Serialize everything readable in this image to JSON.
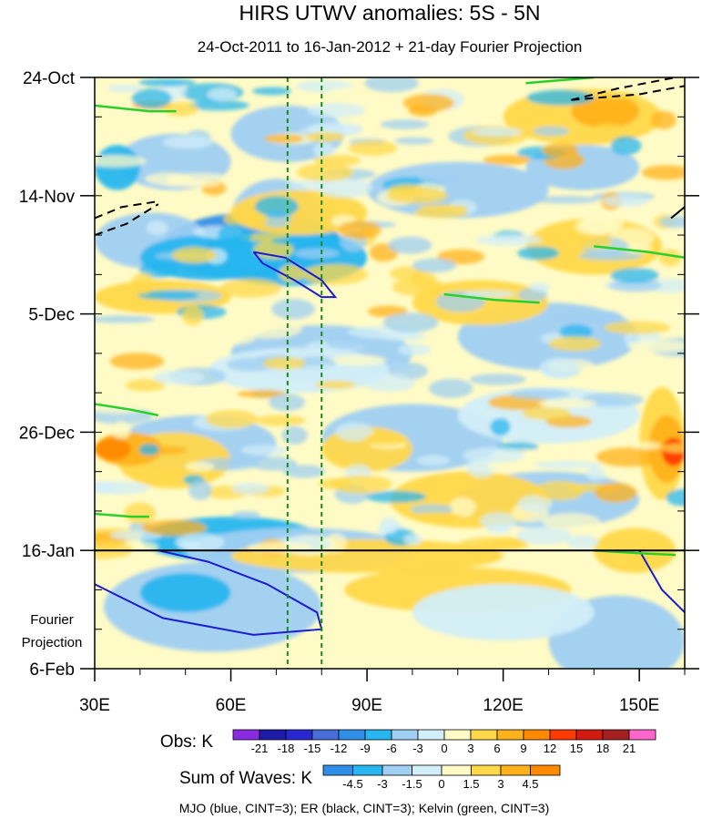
{
  "chart_data": {
    "type": "heatmap",
    "title": "HIRS UTWV anomalies: 5S - 5N",
    "subtitle": "24-Oct-2011 to 16-Jan-2012 + 21-day Fourier Projection",
    "x_axis": {
      "ticks": [
        {
          "value": 30,
          "label": "30E"
        },
        {
          "value": 60,
          "label": "60E"
        },
        {
          "value": 90,
          "label": "90E"
        },
        {
          "value": 120,
          "label": "120E"
        },
        {
          "value": 150,
          "label": "150E"
        }
      ],
      "range": [
        30,
        160
      ],
      "minor_step": 10
    },
    "y_axis": {
      "range_days": [
        0,
        105
      ],
      "reversed": true,
      "ticks": [
        {
          "day": 0,
          "label": "24-Oct"
        },
        {
          "day": 21,
          "label": "14-Nov"
        },
        {
          "day": 42,
          "label": "5-Dec"
        },
        {
          "day": 63,
          "label": "26-Dec"
        },
        {
          "day": 84,
          "label": "16-Jan"
        },
        {
          "day": 105,
          "label": "6-Feb"
        }
      ],
      "minor_step_days": 7
    },
    "forecast_start_day": 84,
    "forecast_label_line1": "Fourier",
    "forecast_label_line2": "Projection",
    "reference_longitudes": [
      72.5,
      80
    ],
    "obs_legend": {
      "label": "Obs: K",
      "levels": [
        "-21",
        "-18",
        "-15",
        "-12",
        "-9",
        "-6",
        "-3",
        "0",
        "3",
        "6",
        "9",
        "12",
        "15",
        "18",
        "21"
      ],
      "colors": [
        "#8a2be2",
        "#1c1ca8",
        "#2828d2",
        "#4a6ed9",
        "#2f8fe8",
        "#27b6ef",
        "#9fcff2",
        "#d2eef8",
        "#fffbc6",
        "#ffd84a",
        "#ffb21a",
        "#ff8a00",
        "#ff3a00",
        "#d21a10",
        "#a52020",
        "#ff66cc"
      ]
    },
    "waves_legend": {
      "label": "Sum of Waves: K",
      "levels": [
        "-4.5",
        "-3",
        "-1.5",
        "0",
        "1.5",
        "3",
        "4.5"
      ],
      "colors": [
        "#2f8fe8",
        "#27b6ef",
        "#9fcff2",
        "#d2eef8",
        "#fffbc6",
        "#ffd84a",
        "#ffb21a",
        "#ff8a00"
      ]
    },
    "footer": "MJO (blue, CINT=3); ER (black, CINT=3); Kelvin (green, CINT=3)",
    "contours": {
      "mjo_color": "#1c1cd0",
      "er_color": "#000000",
      "kelvin_color": "#2ad02a",
      "reference_line_color": "#1a8a1a"
    }
  }
}
